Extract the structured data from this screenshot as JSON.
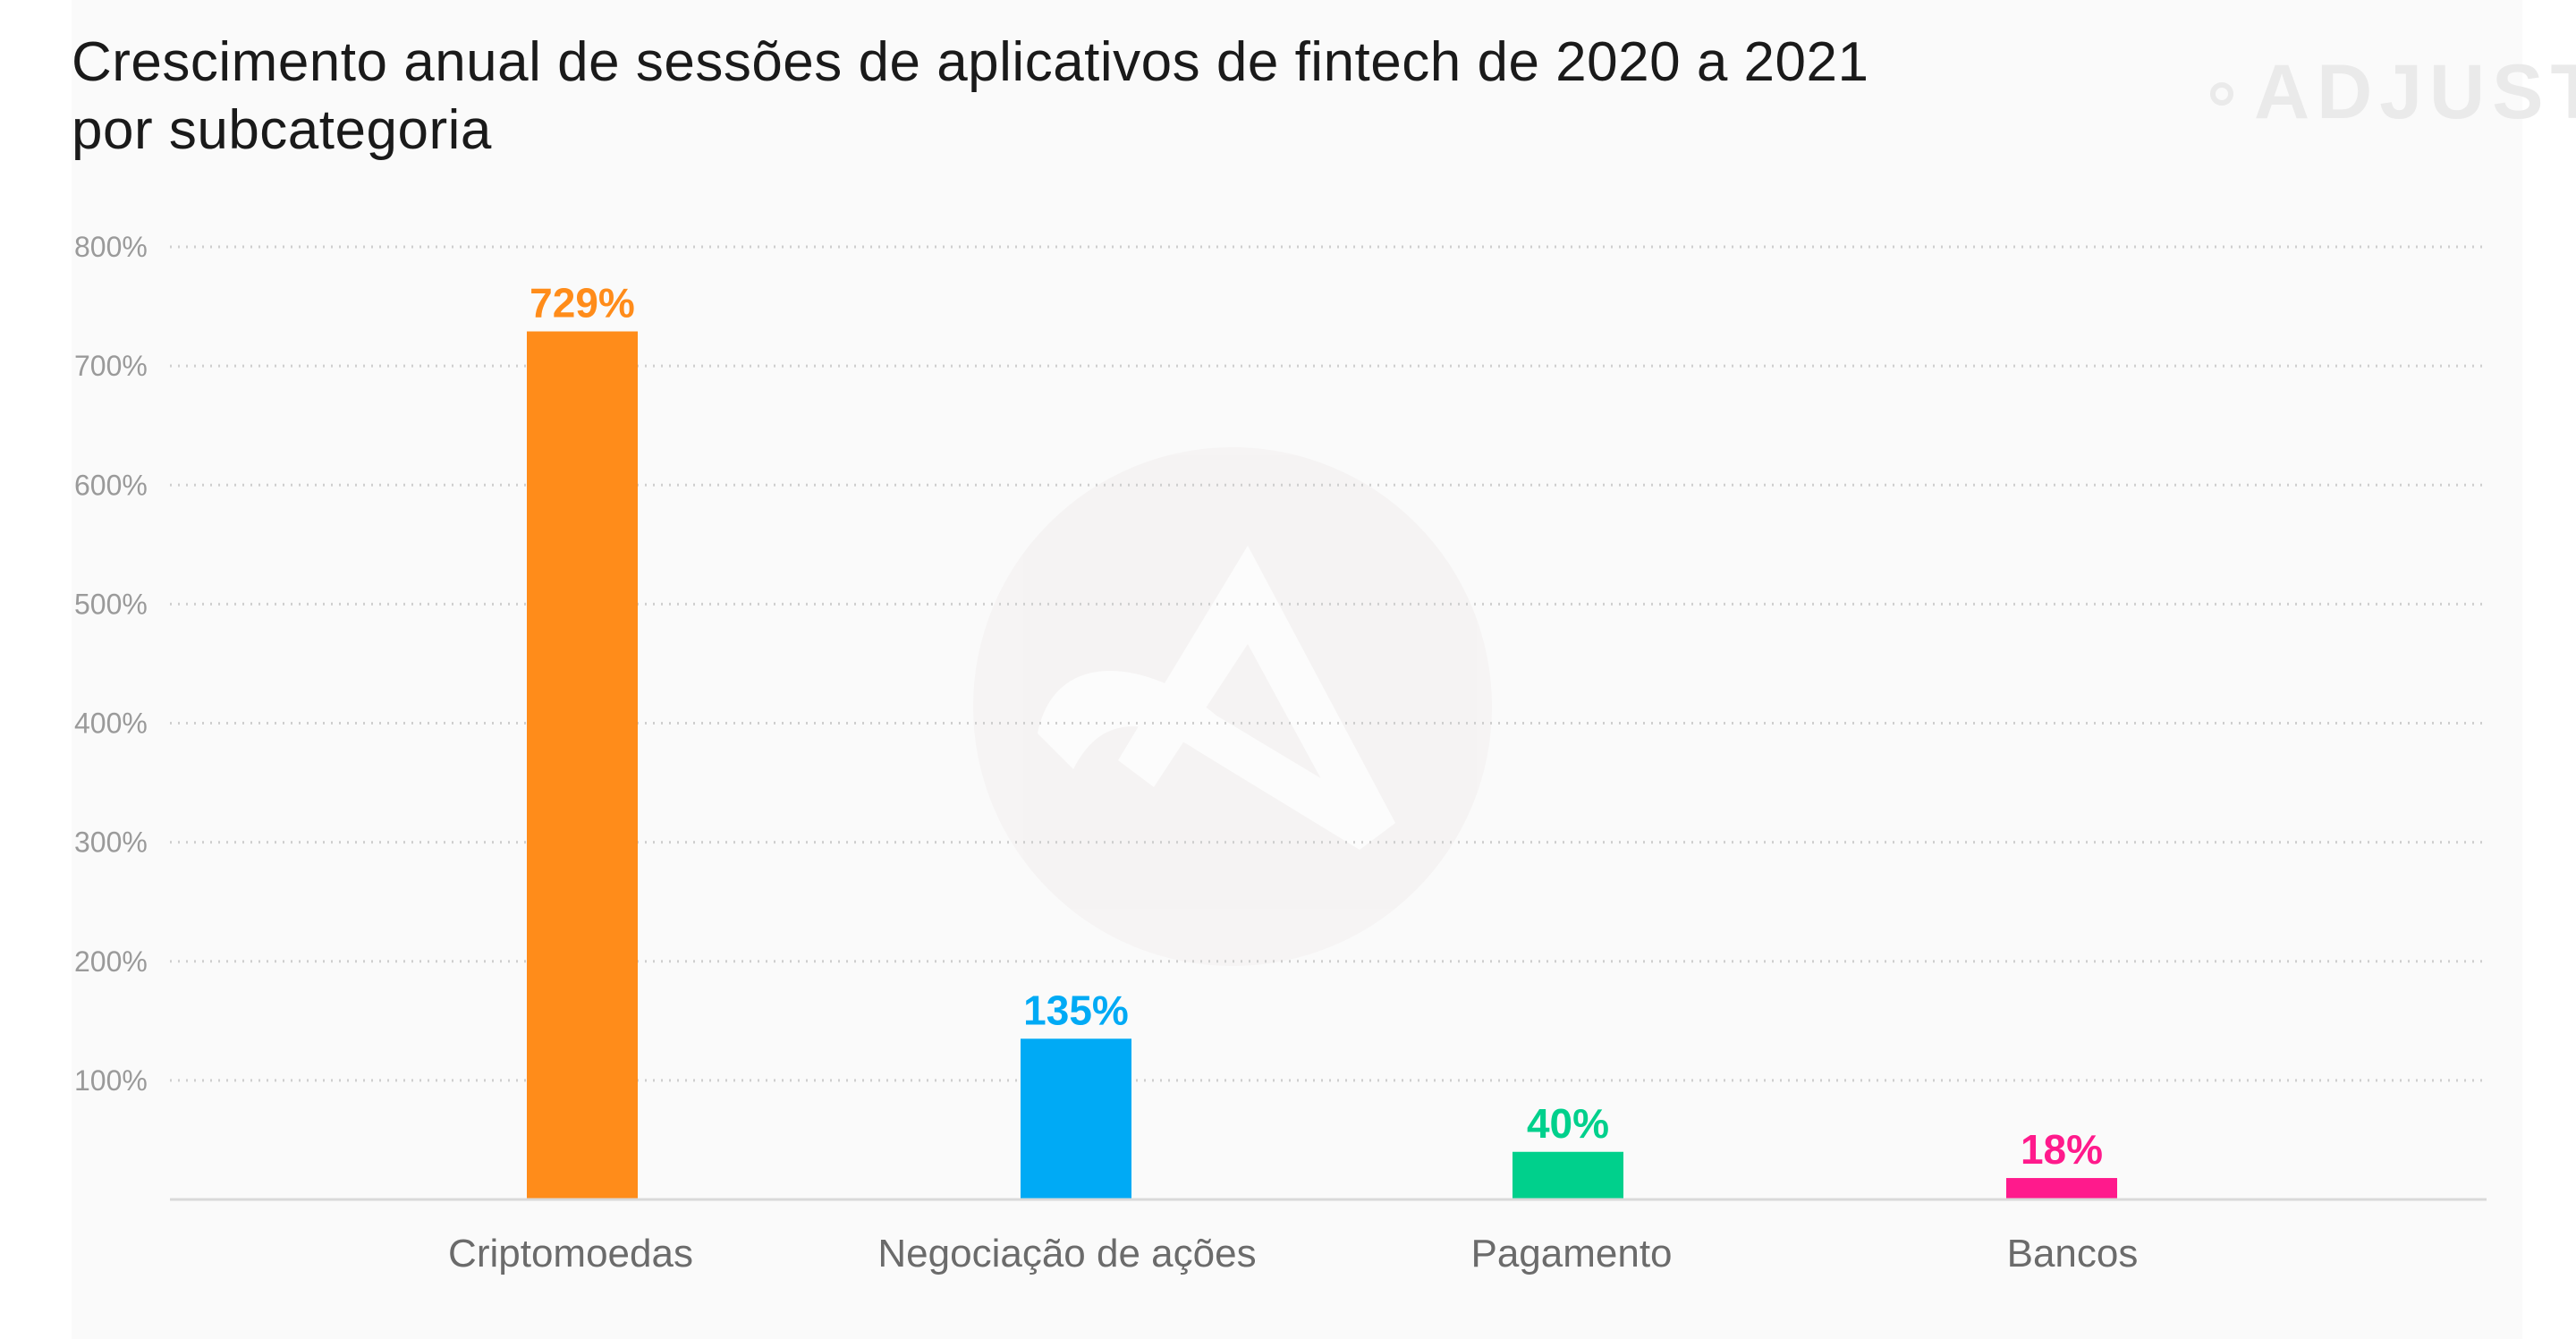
{
  "header": {
    "title_line1": "Crescimento anual de sessões de aplicativos de fintech de 2020 a 2021",
    "title_line2": "por subcategoria",
    "brand": "ADJUST"
  },
  "chart_data": {
    "type": "bar",
    "title": "Crescimento anual de sessões de aplicativos de fintech de 2020 a 2021 por subcategoria",
    "categories": [
      "Criptomoedas",
      "Negociação de ações",
      "Pagamento",
      "Bancos"
    ],
    "values": [
      729,
      135,
      40,
      18
    ],
    "value_labels": [
      "729%",
      "135%",
      "40%",
      "18%"
    ],
    "colors": [
      "#ff8c1a",
      "#00aaf5",
      "#00d08c",
      "#ff1a8c"
    ],
    "ylim": [
      0,
      800
    ],
    "yticks": [
      100,
      200,
      300,
      400,
      500,
      600,
      700,
      800
    ],
    "ytick_labels": [
      "100%",
      "200%",
      "300%",
      "400%",
      "500%",
      "600%",
      "700%",
      "800%"
    ],
    "grid": true,
    "grid_style": "dotted",
    "xlabel": "",
    "ylabel": ""
  }
}
